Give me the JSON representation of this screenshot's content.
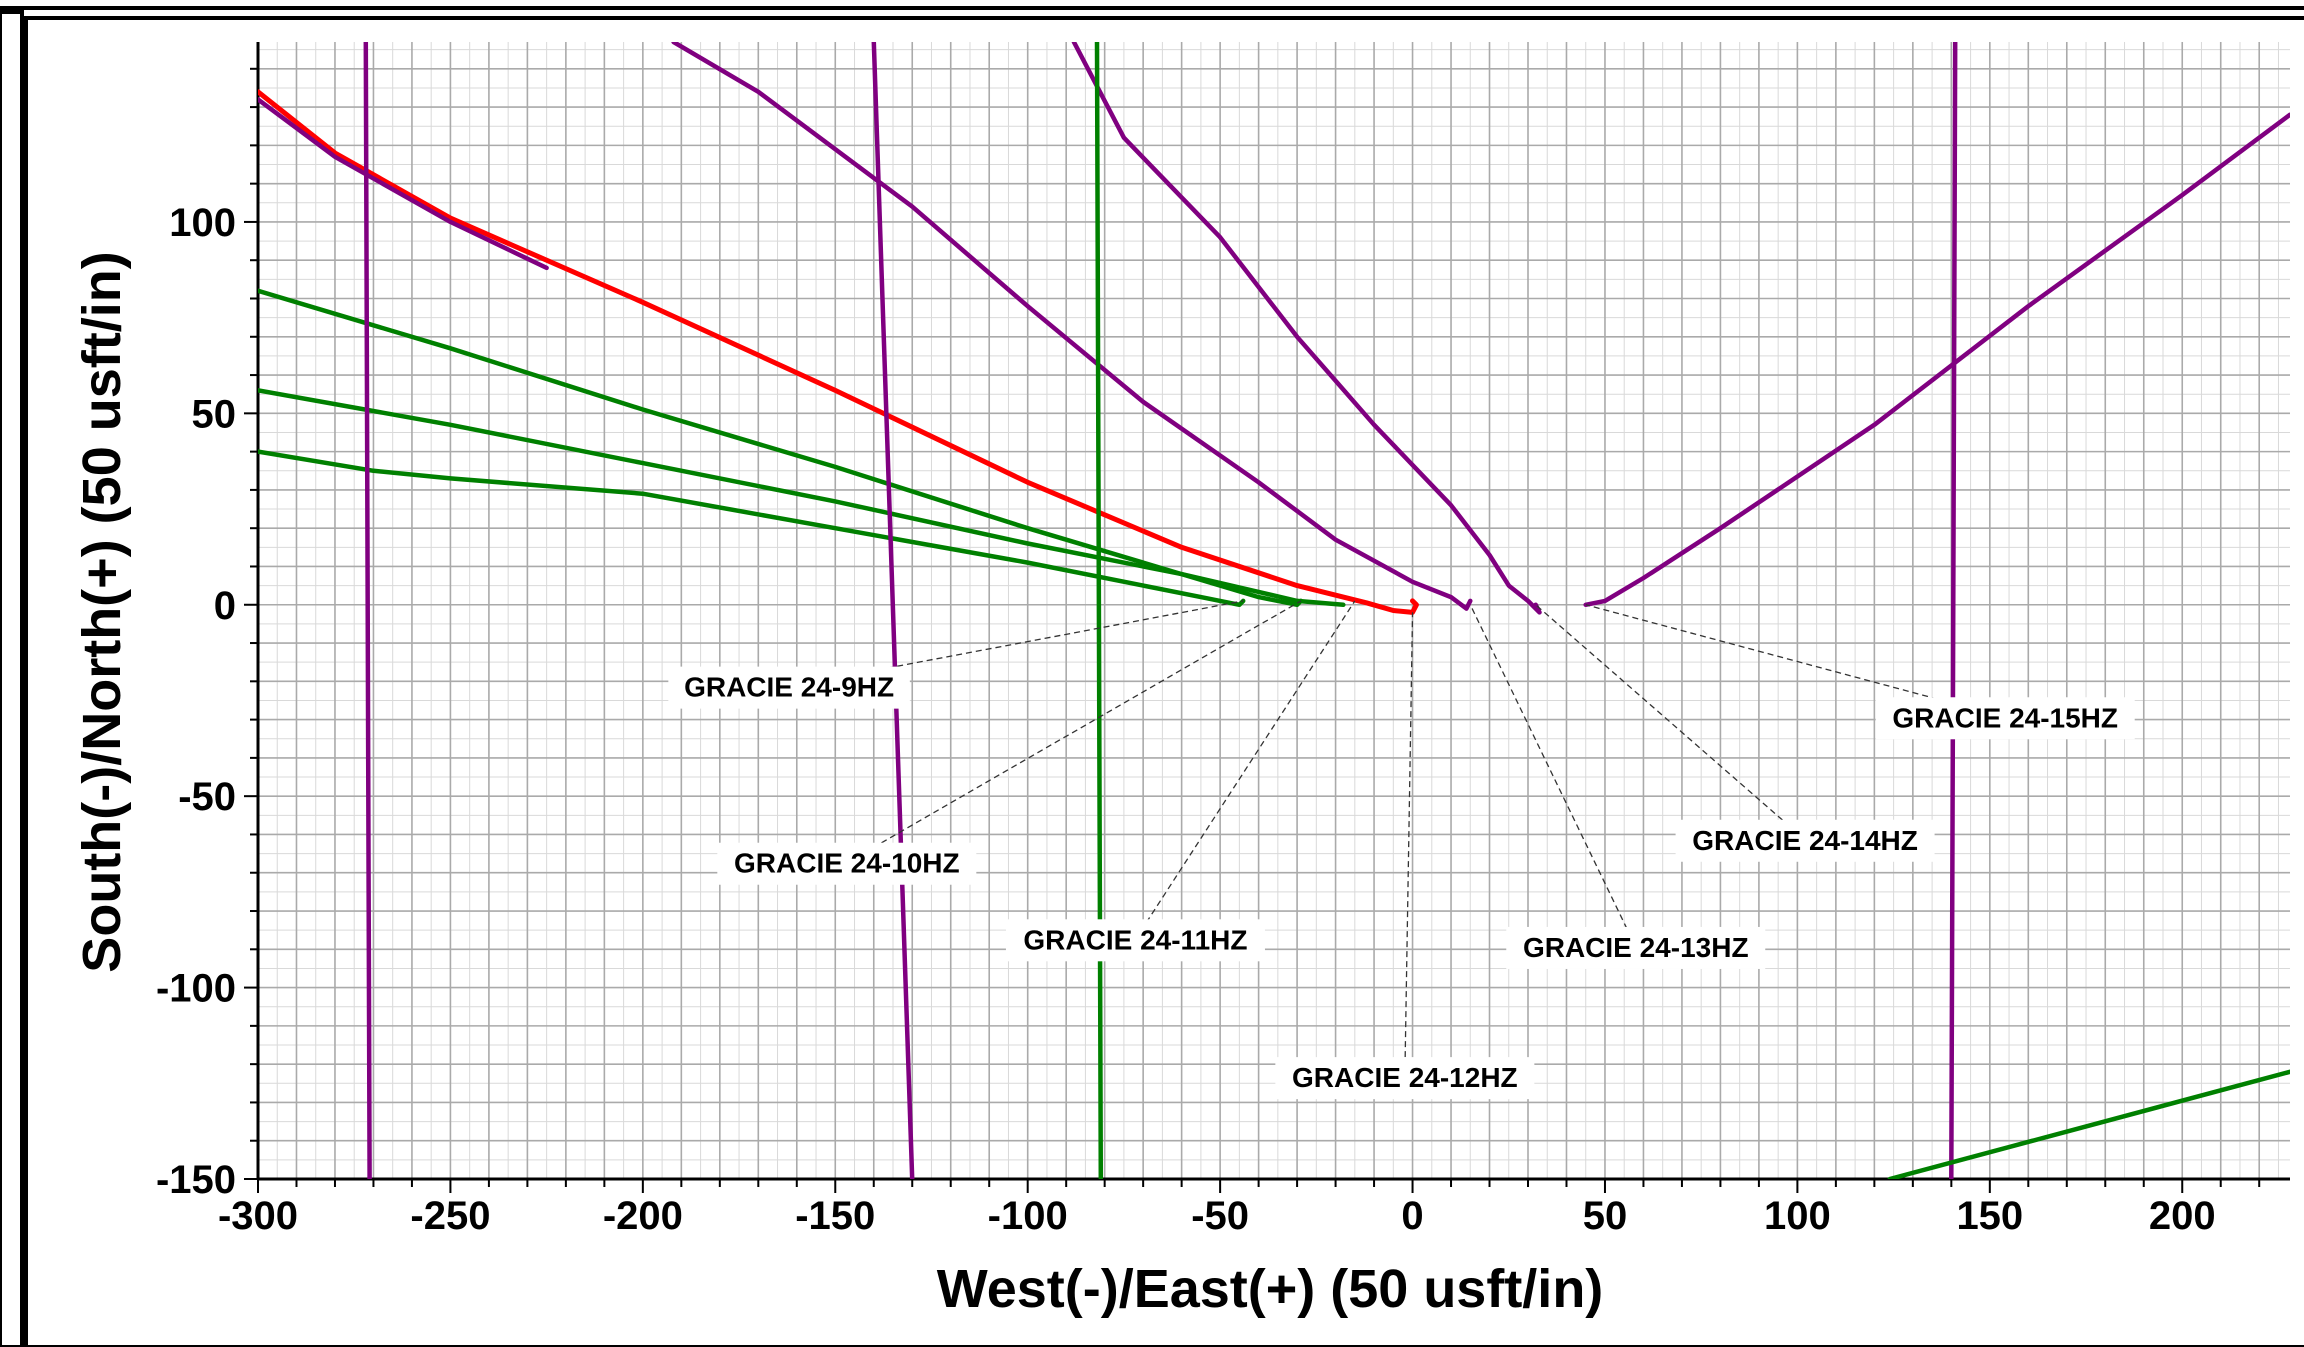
{
  "chart_data": {
    "type": "line",
    "title": "",
    "xlabel": "West(-)/East(+) (50 usft/in)",
    "ylabel": "South(-)/North(+) (50 usft/in)",
    "xlim": [
      -300,
      228
    ],
    "ylim": [
      -150,
      147
    ],
    "x_ticks": [
      -300,
      -250,
      -200,
      -150,
      -100,
      -50,
      0,
      50,
      100,
      150,
      200
    ],
    "y_ticks": [
      -150,
      -100,
      -50,
      0,
      50,
      100
    ],
    "x_tick_labels": [
      "-300",
      "-250",
      "-200",
      "-150",
      "-100",
      "-50",
      "0",
      "50",
      "100",
      "150",
      "200"
    ],
    "y_tick_labels": [
      "-150",
      "-100",
      "-50",
      "0",
      "50",
      "100"
    ],
    "grid": true,
    "colors": {
      "red": "#ff0000",
      "green": "#008000",
      "purple": "#800080",
      "grid_major": "#aaaaaa",
      "grid_minor": "#d9d9d9"
    },
    "series": [
      {
        "color": "#ff0000",
        "points": [
          [
            -300,
            134
          ],
          [
            -280,
            118
          ],
          [
            -250,
            101
          ],
          [
            -200,
            79
          ],
          [
            -150,
            56
          ],
          [
            -100,
            32
          ],
          [
            -60,
            15
          ],
          [
            -30,
            5
          ],
          [
            -12,
            0.5
          ],
          [
            -5,
            -1.5
          ],
          [
            0,
            -2
          ],
          [
            1,
            0
          ],
          [
            0,
            1
          ]
        ]
      },
      {
        "color": "#008000",
        "points": [
          [
            -300,
            82
          ],
          [
            -250,
            67
          ],
          [
            -200,
            51
          ],
          [
            -150,
            36
          ],
          [
            -100,
            20
          ],
          [
            -60,
            8
          ],
          [
            -30,
            1
          ],
          [
            -18,
            0
          ]
        ]
      },
      {
        "color": "#008000",
        "points": [
          [
            -300,
            56
          ],
          [
            -250,
            47
          ],
          [
            -200,
            37
          ],
          [
            -150,
            27
          ],
          [
            -100,
            16
          ],
          [
            -60,
            8
          ],
          [
            -40,
            2
          ],
          [
            -30,
            0
          ],
          [
            -29,
            1
          ]
        ]
      },
      {
        "color": "#008000",
        "points": [
          [
            -300,
            40
          ],
          [
            -270,
            35
          ],
          [
            -250,
            33
          ],
          [
            -200,
            29
          ],
          [
            -150,
            20
          ],
          [
            -100,
            11
          ],
          [
            -70,
            5
          ],
          [
            -55,
            2
          ],
          [
            -45,
            0
          ],
          [
            -44,
            1
          ]
        ]
      },
      {
        "color": "#800080",
        "points": [
          [
            -300,
            132
          ],
          [
            -280,
            117
          ],
          [
            -250,
            100
          ],
          [
            -225,
            88
          ]
        ]
      },
      {
        "color": "#800080",
        "points": [
          [
            -192,
            147
          ],
          [
            -170,
            134
          ],
          [
            -130,
            104
          ],
          [
            -100,
            78
          ],
          [
            -70,
            53
          ],
          [
            -40,
            32
          ],
          [
            -20,
            17
          ],
          [
            0,
            6
          ],
          [
            10,
            2
          ],
          [
            14,
            -1
          ],
          [
            15,
            1
          ]
        ]
      },
      {
        "color": "#800080",
        "points": [
          [
            -88,
            147
          ],
          [
            -75,
            122
          ],
          [
            -50,
            96
          ],
          [
            -30,
            70
          ],
          [
            -10,
            47
          ],
          [
            10,
            26
          ],
          [
            20,
            13
          ],
          [
            25,
            5
          ],
          [
            30,
            1
          ],
          [
            33,
            -2
          ],
          [
            32,
            0
          ]
        ]
      },
      {
        "color": "#800080",
        "points": [
          [
            45,
            0
          ],
          [
            50,
            1
          ],
          [
            60,
            7
          ],
          [
            80,
            20
          ],
          [
            120,
            47
          ],
          [
            160,
            78
          ],
          [
            200,
            107
          ],
          [
            228,
            128
          ]
        ]
      },
      {
        "color": "#800080",
        "points": [
          [
            -272,
            147
          ],
          [
            -271,
            -150
          ]
        ]
      },
      {
        "color": "#800080",
        "points": [
          [
            -140,
            147
          ],
          [
            -130,
            -150
          ]
        ]
      },
      {
        "color": "#008000",
        "points": [
          [
            -82,
            147
          ],
          [
            -81,
            -150
          ]
        ]
      },
      {
        "color": "#800080",
        "points": [
          [
            141,
            147
          ],
          [
            140,
            -150
          ]
        ]
      },
      {
        "color": "#008000",
        "points": [
          [
            124,
            -150
          ],
          [
            228,
            -122
          ]
        ]
      }
    ],
    "annotations": [
      {
        "label": "GRACIE 24-9HZ",
        "text_at": [
          -162,
          -24
        ],
        "target": [
          -44,
          1
        ]
      },
      {
        "label": "GRACIE 24-10HZ",
        "text_at": [
          -147,
          -70
        ],
        "target": [
          -29,
          1
        ]
      },
      {
        "label": "GRACIE 24-11HZ",
        "text_at": [
          -72,
          -90
        ],
        "target": [
          -15,
          1
        ]
      },
      {
        "label": "GRACIE 24-12HZ",
        "text_at": [
          -2,
          -126
        ],
        "target": [
          0,
          -2
        ]
      },
      {
        "label": "GRACIE 24-13HZ",
        "text_at": [
          58,
          -92
        ],
        "target": [
          15,
          0
        ]
      },
      {
        "label": "GRACIE 24-14HZ",
        "text_at": [
          102,
          -64
        ],
        "target": [
          32,
          0
        ]
      },
      {
        "label": "GRACIE 24-15HZ",
        "text_at": [
          154,
          -32
        ],
        "target": [
          45,
          0
        ]
      }
    ]
  }
}
